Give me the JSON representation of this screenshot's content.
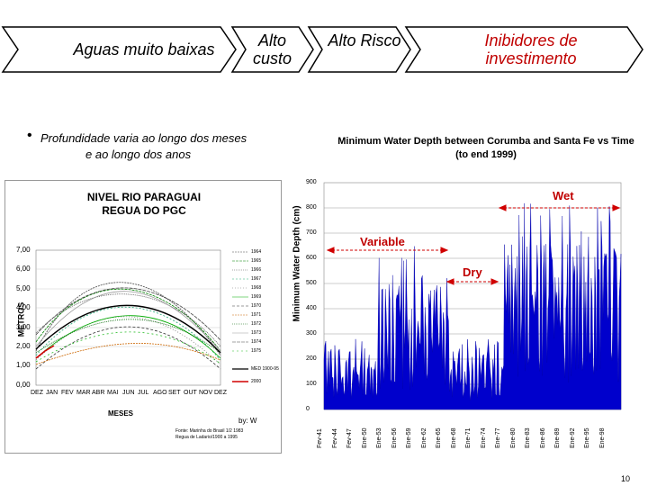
{
  "header": {
    "chevrons": [
      {
        "label": "Aguas muito baixas"
      },
      {
        "label": "Alto custo"
      },
      {
        "label": "Alto Risco"
      },
      {
        "label": "Inibidores de investimento"
      }
    ]
  },
  "bullet": {
    "line1": "Profundidade varia ao longo dos meses",
    "line2": "e ao longo dos anos"
  },
  "left_chart": {
    "title_line1": "NIVEL RIO PARAGUAI",
    "title_line2": "REGUA DO PGC",
    "ylabel": "METROS",
    "xlabel": "MESES",
    "y_ticks": [
      "7,00",
      "6,00",
      "5,00",
      "4,00",
      "3,00",
      "2,00",
      "1,00",
      "0,00"
    ],
    "x_ticks": [
      "DEZ",
      "JAN",
      "FEV",
      "MAR",
      "ABR",
      "MAI",
      "JUN",
      "JUL",
      "AGO",
      "SET",
      "OUT",
      "NOV",
      "DEZ"
    ],
    "legend": [
      "1964",
      "1965",
      "1966",
      "1967",
      "1968",
      "1969",
      "1970",
      "1971",
      "1972",
      "1973",
      "1974",
      "1975",
      "MED 1900-95",
      "2000"
    ],
    "byline": "by: W",
    "footnote_line1": "Fonte: Marinha do Brasil 1/2 1983",
    "footnote_line2": "Regua de Ladario/1900 a 1995"
  },
  "right_chart": {
    "title_line1": "Minimum Water Depth between Corumba and Santa Fe vs Time",
    "title_line2": "(to end 1999)",
    "ylabel": "Minimum Water Depth (cm)",
    "annotations": {
      "wet": "Wet",
      "variable": "Variable",
      "dry": "Dry"
    },
    "y_ticks": [
      "900",
      "800",
      "700",
      "600",
      "500",
      "400",
      "300",
      "200",
      "100",
      "0"
    ],
    "x_ticks": [
      "Fev-41",
      "Fev-44",
      "Fev-47",
      "Ene-50",
      "Ene-53",
      "Ene-56",
      "Ene-59",
      "Ene-62",
      "Ene-65",
      "Ene-68",
      "Ene-71",
      "Ene-74",
      "Ene-77",
      "Ene-80",
      "Ene-83",
      "Ene-86",
      "Ene-89",
      "Ene-92",
      "Ene-95",
      "Ene-98"
    ],
    "fill_color": "#0000cc"
  },
  "page_number": "10"
}
